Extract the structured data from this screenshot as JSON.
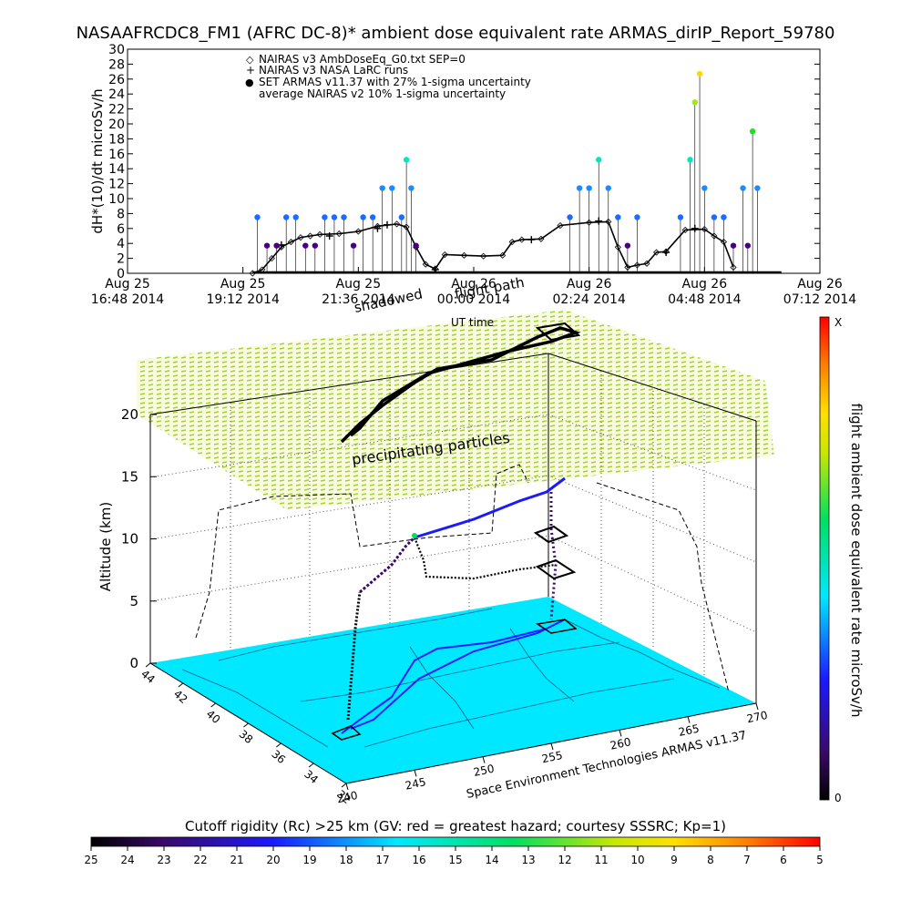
{
  "figure": {
    "title": "NASAAFRCDC8_FM1 (AFRC DC-8)* ambient dose equivalent rate ARMAS_dirIP_Report_59780",
    "credit": "Space Environment Technologies ARMAS v11.37",
    "overlay_label_shadowed": "shadowed",
    "overlay_label_flight_path": "flight path",
    "overlay_label_ut_time": "UT time",
    "overlay_label_precip": "precipitating particles"
  },
  "chart_data": [
    {
      "type": "line",
      "panel": "timeseries",
      "ylabel": "dH*(10)/dt microSv/h",
      "xlabel": "",
      "ylim": [
        0,
        30
      ],
      "y_ticks": [
        "0",
        "2",
        "4",
        "6",
        "8",
        "10",
        "12",
        "14",
        "16",
        "18",
        "20",
        "22",
        "24",
        "26",
        "28",
        "30"
      ],
      "x_ticks": [
        {
          "day": "Aug 25",
          "time": "16:48 2014"
        },
        {
          "day": "Aug 25",
          "time": "19:12 2014"
        },
        {
          "day": "Aug 25",
          "time": "21:36 2014"
        },
        {
          "day": "Aug 26",
          "time": "00:00 2014"
        },
        {
          "day": "Aug 26",
          "time": "02:24 2014"
        },
        {
          "day": "Aug 26",
          "time": "04:48 2014"
        },
        {
          "day": "Aug 26",
          "time": "07:12 2014"
        }
      ],
      "x_unit": "hours after Aug 25 16:48 2014",
      "xlim": [
        0,
        14.4
      ],
      "legend": [
        {
          "marker": "◇",
          "label": "NAIRAS v3 AmbDoseEq_G0.txt SEP=0"
        },
        {
          "marker": "+",
          "label": "NAIRAS v3 NASA LaRC runs"
        },
        {
          "marker": "●",
          "label": "SET ARMAS v11.37 with 27% 1-sigma uncertainty",
          "color": "#1030ff"
        },
        {
          "marker": "",
          "label": "average NAIRAS v2 10% 1-sigma uncertainty"
        }
      ],
      "series": [
        {
          "name": "NAIRAS v3 AmbDoseEq_G0.txt SEP=0",
          "x": [
            2.6,
            2.8,
            3.0,
            3.2,
            3.4,
            3.6,
            3.8,
            4.0,
            4.4,
            4.8,
            5.2,
            5.6,
            5.8,
            6.0,
            6.2,
            6.4,
            6.6,
            7.0,
            7.4,
            7.8,
            8.0,
            8.2,
            8.6,
            9.0,
            9.6,
            10.0,
            10.2,
            10.4,
            10.6,
            10.8,
            11.0,
            11.2,
            11.6,
            12.0,
            12.2,
            12.4,
            12.6
          ],
          "y": [
            0,
            0.5,
            2.0,
            3.5,
            4.2,
            4.8,
            5.0,
            5.2,
            5.3,
            5.6,
            6.3,
            6.6,
            6.2,
            3.5,
            1.2,
            0.6,
            2.5,
            2.4,
            2.3,
            2.4,
            4.2,
            4.5,
            4.6,
            6.4,
            6.8,
            6.9,
            3.5,
            0.8,
            1.1,
            1.3,
            2.8,
            2.9,
            5.8,
            5.9,
            5.0,
            4.2,
            0.8
          ]
        },
        {
          "name": "NAIRAS v3 NASA LaRC runs",
          "x": [
            3.2,
            4.2,
            5.2,
            5.4,
            6.4,
            8.4,
            9.8,
            11.2,
            11.8
          ],
          "y": [
            3.8,
            5.0,
            6.0,
            6.5,
            0.5,
            4.5,
            7.0,
            2.8,
            6.0
          ]
        },
        {
          "name": "SET ARMAS v11.37 with 27% 1-sigma uncertainty",
          "x": [
            2.7,
            2.9,
            3.1,
            3.3,
            3.5,
            3.7,
            3.9,
            4.1,
            4.3,
            4.5,
            4.7,
            4.9,
            5.1,
            5.3,
            5.5,
            5.7,
            5.8,
            5.9,
            6.0,
            9.2,
            9.4,
            9.6,
            9.8,
            10.0,
            10.2,
            10.4,
            10.6,
            11.5,
            11.7,
            11.8,
            11.9,
            12.0,
            12.2,
            12.4,
            12.6,
            12.8,
            12.9,
            13.0,
            13.1
          ],
          "y": [
            7.5,
            3.7,
            3.7,
            7.5,
            7.5,
            3.7,
            3.7,
            7.5,
            7.5,
            7.5,
            3.7,
            7.5,
            7.5,
            11.4,
            11.4,
            7.5,
            15.2,
            11.4,
            3.7,
            7.5,
            11.4,
            11.4,
            15.2,
            11.4,
            7.5,
            3.7,
            7.5,
            7.5,
            15.2,
            22.9,
            26.7,
            11.4,
            7.5,
            7.5,
            3.7,
            11.4,
            3.7,
            19.0,
            11.4
          ],
          "color": "#1a8cff"
        },
        {
          "name": "average NAIRAS v2 10% 1-sigma uncertainty",
          "x": [
            2.6,
            13.6
          ],
          "y": [
            0,
            0
          ]
        }
      ]
    },
    {
      "type": "scatter",
      "panel": "3d-flight-path",
      "zlabel": "Altitude (km)",
      "zlim": [
        0,
        20
      ],
      "z_ticks": [
        "0",
        "5",
        "10",
        "15",
        "20"
      ],
      "lat_ticks": [
        "44",
        "42",
        "40",
        "38",
        "36",
        "34",
        "32"
      ],
      "lon_ticks": [
        "240",
        "245",
        "250",
        "255",
        "260",
        "265",
        "270"
      ],
      "colorbar_right": {
        "label": "flight ambient dose equivalent rate microSv/h",
        "max_label": "X",
        "min_label": "0"
      },
      "colorbar_bottom": {
        "label": "Cutoff rigidity (Rc) >25 km (GV: red = greatest hazard; courtesy SSSRC; Kp=1)",
        "ticks": [
          "25",
          "24",
          "23",
          "22",
          "21",
          "20",
          "19",
          "18",
          "17",
          "16",
          "15",
          "14",
          "13",
          "12",
          "11",
          "10",
          "9",
          "8",
          "7",
          "6",
          "5"
        ]
      }
    }
  ]
}
